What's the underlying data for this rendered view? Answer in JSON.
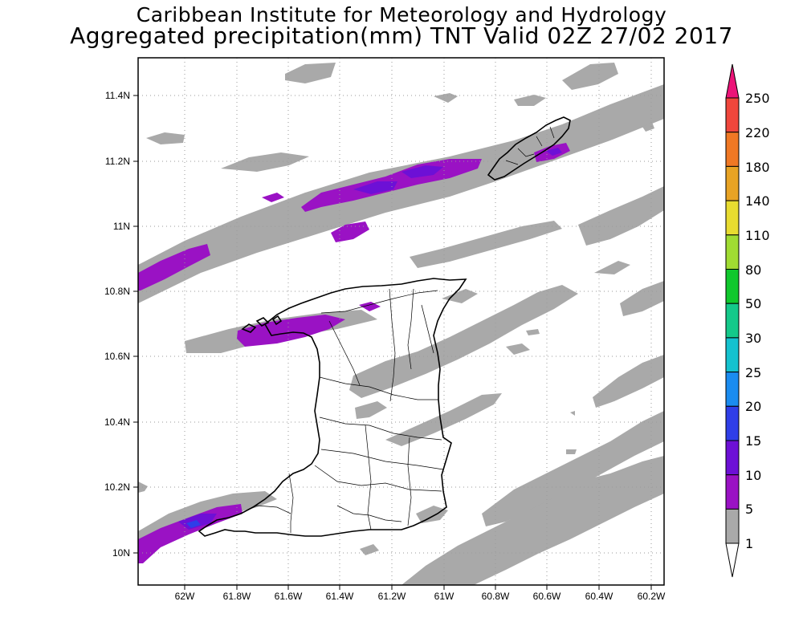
{
  "title": {
    "line1": "Caribbean Institute for Meteorology and Hydrology",
    "line2": "Aggregated precipitation(mm) TNT Valid 02Z 27/02 2017"
  },
  "map": {
    "lon_range": [
      -62.1,
      -60.2
    ],
    "lat_range": [
      9.9,
      11.5
    ],
    "lon_ticks": [
      "62W",
      "61.8W",
      "61.6W",
      "61.4W",
      "61.2W",
      "61W",
      "60.8W",
      "60.6W",
      "60.4W",
      "60.2W"
    ],
    "lat_ticks": [
      "10N",
      "10.2N",
      "10.4N",
      "10.6N",
      "10.8N",
      "11N",
      "11.2N",
      "11.4N"
    ],
    "gridlines": "dotted"
  },
  "colorbar": {
    "labels": [
      "1",
      "5",
      "10",
      "15",
      "20",
      "25",
      "30",
      "50",
      "80",
      "110",
      "140",
      "180",
      "220",
      "250"
    ],
    "colors": {
      "under": "#ffffff",
      "b1_5": "#a9a9a9",
      "b5_10": "#9a12c4",
      "b10_15": "#6d10d6",
      "b15_20": "#2f3ee8",
      "b20_25": "#1a8cf0",
      "b25_30": "#14c2cf",
      "b30_50": "#14c98a",
      "b50_80": "#10c82d",
      "b80_110": "#a0dc32",
      "b110_140": "#e8dc30",
      "b140_180": "#e8a324",
      "b180_220": "#f07824",
      "b220_250": "#f0463c",
      "over": "#ec1478"
    }
  }
}
